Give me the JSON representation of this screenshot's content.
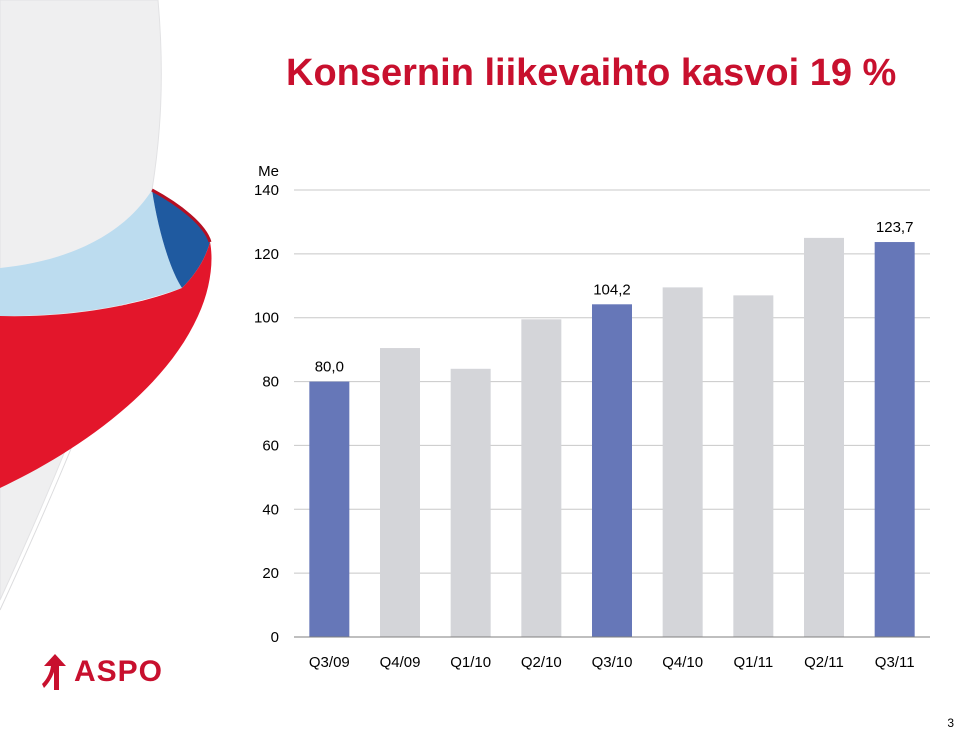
{
  "title": "Konsernin liikevaihto kasvoi 19 %",
  "logo_text": "ASPO",
  "page_number": "3",
  "colors": {
    "title": "#c8102e",
    "highlight_bar": "#6677b8",
    "regular_bar": "#d4d5d9",
    "ribbon_red": "#e3162b",
    "ribbon_blue": "#1f5aa0",
    "ribbon_lightblue": "#bcdcef"
  },
  "chart_data": {
    "type": "bar",
    "unit_label": "Me",
    "categories": [
      "Q3/09",
      "Q4/09",
      "Q1/10",
      "Q2/10",
      "Q3/10",
      "Q4/10",
      "Q1/11",
      "Q2/11",
      "Q3/11"
    ],
    "values": [
      80.0,
      90.5,
      84.0,
      99.5,
      104.2,
      109.5,
      107.0,
      125.0,
      123.7
    ],
    "highlighted": [
      true,
      false,
      false,
      false,
      true,
      false,
      false,
      false,
      true
    ],
    "data_labels": [
      "80,0",
      "",
      "",
      "",
      "104,2",
      "",
      "",
      "",
      "123,7"
    ],
    "y_ticks": [
      0,
      20,
      40,
      60,
      80,
      100,
      120,
      140
    ],
    "ylim": [
      0,
      140
    ],
    "grid": true
  }
}
